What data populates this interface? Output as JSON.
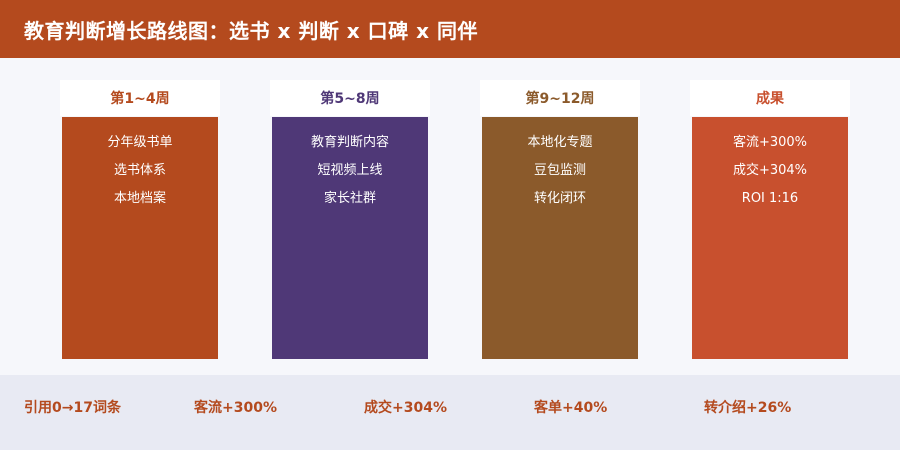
{
  "header": {
    "title": "教育判断增长路线图：选书 x 判断 x 口碑 x 同伴"
  },
  "colors": {
    "header_bg": "#b44a1e",
    "footer_text": "#b44a1e"
  },
  "columns": [
    {
      "label": "第1~4周",
      "label_color": "#b44a1e",
      "body_color": "#b44a1e",
      "items": [
        "分年级书单",
        "选书体系",
        "本地档案"
      ]
    },
    {
      "label": "第5~8周",
      "label_color": "#4f3877",
      "body_color": "#4f3877",
      "items": [
        "教育判断内容",
        "短视频上线",
        "家长社群"
      ]
    },
    {
      "label": "第9~12周",
      "label_color": "#8b5a2b",
      "body_color": "#8b5a2b",
      "items": [
        "本地化专题",
        "豆包监测",
        "转化闭环"
      ]
    },
    {
      "label": "成果",
      "label_color": "#c8502e",
      "body_color": "#c8502e",
      "items": [
        "客流+300%",
        "成交+304%",
        "ROI 1:16"
      ]
    }
  ],
  "footer": {
    "stats": [
      "引用0→17词条",
      "客流+300%",
      "成交+304%",
      "客单+40%",
      "转介绍+26%"
    ]
  }
}
